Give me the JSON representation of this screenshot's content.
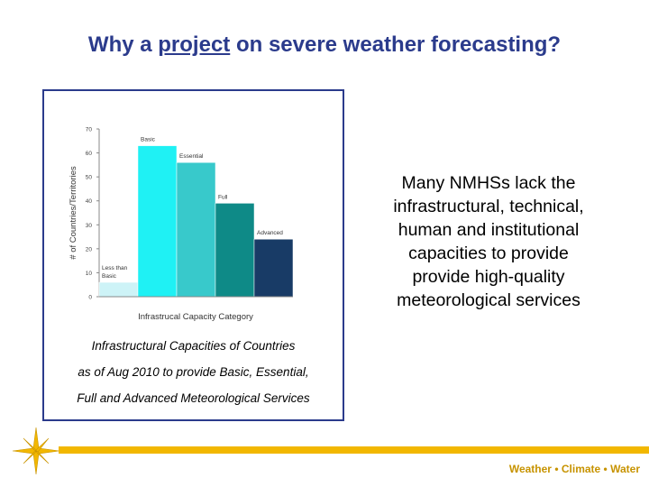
{
  "slide": {
    "title_before": "Why a ",
    "title_underlined": "project",
    "title_after": " on severe weather forecasting?",
    "side_text": [
      "Many NMHSs lack the",
      "infrastructural, technical,",
      "human and institutional",
      "capacities to provide",
      "provide high-quality",
      "meteorological services"
    ],
    "caption": [
      "Infrastructural Capacities of Countries",
      "as of Aug 2010 to provide Basic, Essential,",
      "Full and Advanced Meteorological Services"
    ],
    "tagline": {
      "part1": "Weather",
      "sep1": " • ",
      "part2": "Climate",
      "sep2": " • ",
      "part3": "Water"
    },
    "accent_color": "#2b3b8c",
    "rule_color": "#f2b700"
  },
  "chart_data": {
    "type": "bar",
    "categories": [
      "Less than Basic",
      "Basic",
      "Essential",
      "Full",
      "Advanced"
    ],
    "category_label_lines": [
      [
        "Less than",
        "Basic"
      ],
      [
        "Basic"
      ],
      [
        "Essential"
      ],
      [
        "Full"
      ],
      [
        "Advanced"
      ]
    ],
    "values": [
      6,
      63,
      56,
      39,
      24
    ],
    "colors": [
      "#cdf3f7",
      "#1ff1f4",
      "#38c9cb",
      "#0e8a87",
      "#183b66"
    ],
    "title": "",
    "xlabel": "Infrastrucal Capacity Category",
    "ylabel": "# of Countries/Territories",
    "ylim": [
      0,
      70
    ],
    "yticks": [
      0,
      10,
      20,
      30,
      40,
      50,
      60,
      70
    ],
    "grid": false,
    "legend": "none"
  }
}
